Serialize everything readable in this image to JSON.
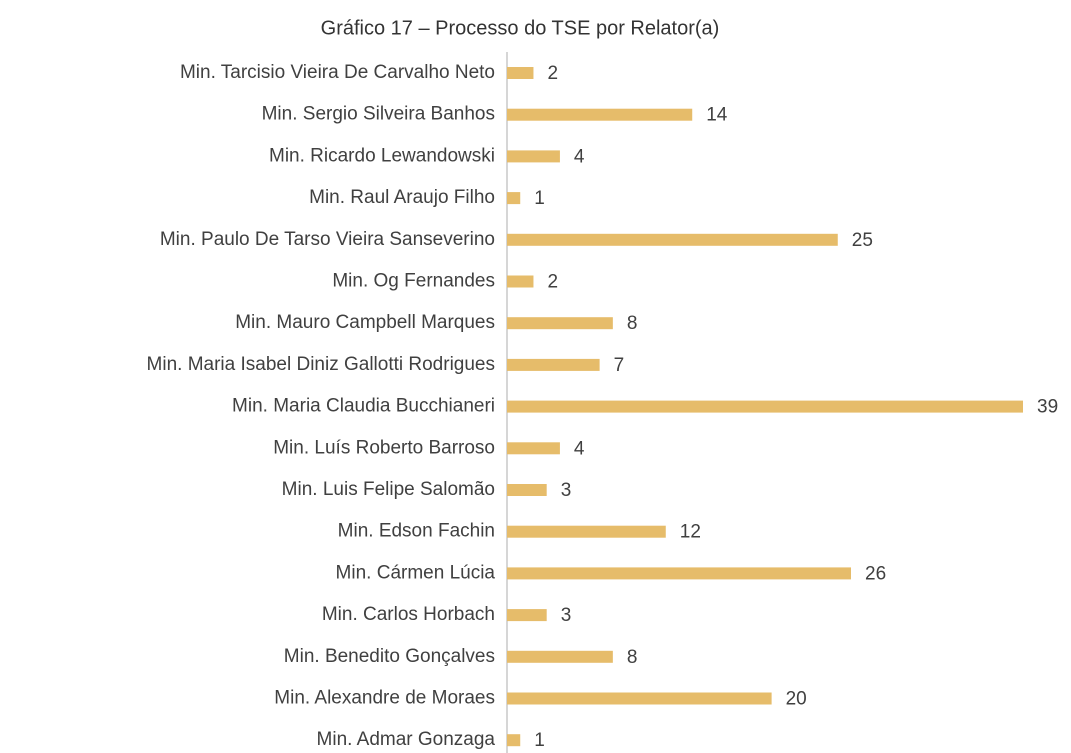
{
  "chart_data": {
    "type": "bar",
    "orientation": "horizontal",
    "title": "Gráfico 17 – Processo do TSE por Relator(a)",
    "categories": [
      "Min. Tarcisio Vieira De Carvalho Neto",
      "Min. Sergio Silveira Banhos",
      "Min. Ricardo Lewandowski",
      "Min. Raul Araujo Filho",
      "Min. Paulo De Tarso Vieira Sanseverino",
      "Min. Og Fernandes",
      "Min. Mauro Campbell Marques",
      "Min. Maria Isabel Diniz Gallotti Rodrigues",
      "Min. Maria Claudia Bucchianeri",
      "Min. Luís Roberto Barroso",
      "Min. Luis Felipe Salomão",
      "Min. Edson Fachin",
      "Min. Cármen Lúcia",
      "Min. Carlos Horbach",
      "Min. Benedito Gonçalves",
      "Min. Alexandre de Moraes",
      "Min. Admar Gonzaga"
    ],
    "values": [
      2,
      14,
      4,
      1,
      25,
      2,
      8,
      7,
      39,
      4,
      3,
      12,
      26,
      3,
      8,
      20,
      1
    ],
    "color": "#e6bc6a"
  }
}
